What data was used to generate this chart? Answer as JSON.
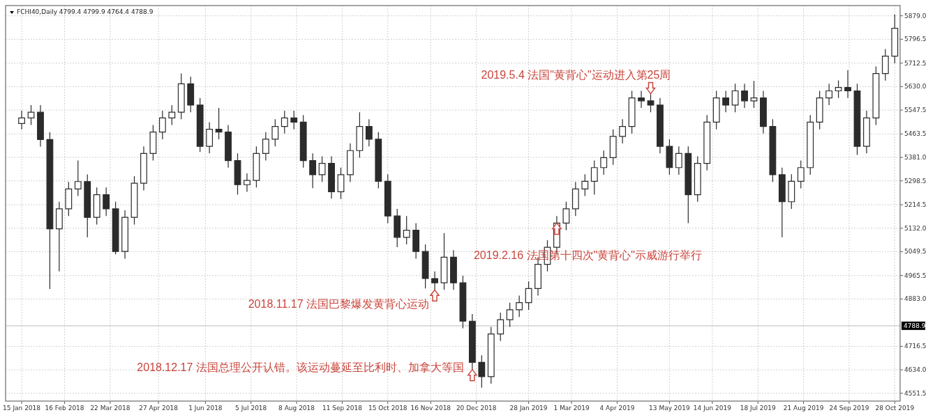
{
  "chart_data": {
    "type": "candlestick",
    "title": "FCHI40,Daily  4799.4 4799.9 4764.4 4788.9",
    "color": "#2b2b2b",
    "grid": true,
    "xlim": [
      "2018-01-03",
      "2019-11-01"
    ],
    "ylim": [
      4524,
      5915
    ],
    "xticks": [
      {
        "value": "2018-01-15",
        "label": "15 Jan 2018"
      },
      {
        "value": "2018-02-16",
        "label": "16 Feb 2018"
      },
      {
        "value": "2018-03-22",
        "label": "22 Mar 2018"
      },
      {
        "value": "2018-04-27",
        "label": "27 Apr 2018"
      },
      {
        "value": "2018-06-01",
        "label": "1 Jun 2018"
      },
      {
        "value": "2018-07-05",
        "label": "5 Jul 2018"
      },
      {
        "value": "2018-08-08",
        "label": "8 Aug 2018"
      },
      {
        "value": "2018-09-11",
        "label": "11 Sep 2018"
      },
      {
        "value": "2018-10-15",
        "label": "15 Oct 2018"
      },
      {
        "value": "2018-11-16",
        "label": "16 Nov 2018"
      },
      {
        "value": "2018-12-20",
        "label": "20 Dec 2018"
      },
      {
        "value": "2019-01-28",
        "label": "28 Jan 2019"
      },
      {
        "value": "2019-03-01",
        "label": "1 Mar 2019"
      },
      {
        "value": "2019-04-04",
        "label": "4 Apr 2019"
      },
      {
        "value": "2019-05-13",
        "label": "13 May 2019"
      },
      {
        "value": "2019-06-14",
        "label": "14 Jun 2019"
      },
      {
        "value": "2019-07-18",
        "label": "18 Jul 2019"
      },
      {
        "value": "2019-08-21",
        "label": "21 Aug 2019"
      },
      {
        "value": "2019-09-24",
        "label": "24 Sep 2019"
      },
      {
        "value": "2019-10-28",
        "label": "28 Oct 2019"
      }
    ],
    "yticks": [
      {
        "value": 4551.5,
        "label": "4551.5"
      },
      {
        "value": 4634,
        "label": "4634.0"
      },
      {
        "value": 4716.5,
        "label": "4716.5"
      },
      {
        "value": 4883,
        "label": "4883.0"
      },
      {
        "value": 4965.5,
        "label": "4965.5"
      },
      {
        "value": 5049.5,
        "label": "5049.5"
      },
      {
        "value": 5132,
        "label": "5132.0"
      },
      {
        "value": 5214.5,
        "label": "5214.5"
      },
      {
        "value": 5298.5,
        "label": "5298.5"
      },
      {
        "value": 5381,
        "label": "5381.0"
      },
      {
        "value": 5463.5,
        "label": "5463.5"
      },
      {
        "value": 5547.5,
        "label": "5547.5"
      },
      {
        "value": 5630,
        "label": "5630.0"
      },
      {
        "value": 5712.5,
        "label": "5712.5"
      },
      {
        "value": 5796.5,
        "label": "5796.5"
      },
      {
        "value": 5879,
        "label": "5879.0"
      }
    ],
    "ref_lines": [
      {
        "axis": "y",
        "value": 4788.9,
        "label": "4788.9",
        "color": "#c8c8c8"
      }
    ],
    "annotations": [
      {
        "text": "2018.11.17 法国巴黎爆发黄背心运动",
        "x": "2018-11-19",
        "y": 4915
      },
      {
        "text": "2018.12.17  法国总理公开认错。该运动蔓延至比利时、加拿大等国",
        "x": "2018-12-17",
        "y": 4635
      },
      {
        "text": "2019.2.16  法国第十四次\"黄背心\"示威游行举行",
        "x": "2019-02-18",
        "y": 5150
      },
      {
        "text": "2019.5.4  法国\"黄背心\"运动进入第25周",
        "x": "2019-04-29",
        "y": 5605
      }
    ],
    "x": [
      "2018-01-15",
      "2018-01-22",
      "2018-01-29",
      "2018-02-05",
      "2018-02-12",
      "2018-02-19",
      "2018-02-26",
      "2018-03-05",
      "2018-03-12",
      "2018-03-19",
      "2018-03-26",
      "2018-04-02",
      "2018-04-09",
      "2018-04-16",
      "2018-04-23",
      "2018-04-30",
      "2018-05-07",
      "2018-05-14",
      "2018-05-21",
      "2018-05-28",
      "2018-06-04",
      "2018-06-11",
      "2018-06-18",
      "2018-06-25",
      "2018-07-02",
      "2018-07-09",
      "2018-07-16",
      "2018-07-23",
      "2018-07-30",
      "2018-08-06",
      "2018-08-13",
      "2018-08-20",
      "2018-08-27",
      "2018-09-03",
      "2018-09-10",
      "2018-09-17",
      "2018-09-24",
      "2018-10-01",
      "2018-10-08",
      "2018-10-15",
      "2018-10-22",
      "2018-10-29",
      "2018-11-05",
      "2018-11-12",
      "2018-11-19",
      "2018-11-26",
      "2018-12-03",
      "2018-12-10",
      "2018-12-17",
      "2018-12-24",
      "2018-12-31",
      "2019-01-07",
      "2019-01-14",
      "2019-01-21",
      "2019-01-28",
      "2019-02-04",
      "2019-02-11",
      "2019-02-18",
      "2019-02-25",
      "2019-03-04",
      "2019-03-11",
      "2019-03-18",
      "2019-03-25",
      "2019-04-01",
      "2019-04-08",
      "2019-04-15",
      "2019-04-22",
      "2019-04-29",
      "2019-05-06",
      "2019-05-13",
      "2019-05-20",
      "2019-05-27",
      "2019-06-03",
      "2019-06-10",
      "2019-06-17",
      "2019-06-24",
      "2019-07-01",
      "2019-07-08",
      "2019-07-15",
      "2019-07-22",
      "2019-07-29",
      "2019-08-05",
      "2019-08-12",
      "2019-08-19",
      "2019-08-26",
      "2019-09-02",
      "2019-09-09",
      "2019-09-16",
      "2019-09-23",
      "2019-09-30",
      "2019-10-07",
      "2019-10-14",
      "2019-10-21",
      "2019-10-28"
    ],
    "ohlc": [
      [
        5500,
        5545,
        5480,
        5520
      ],
      [
        5520,
        5565,
        5495,
        5540
      ],
      [
        5540,
        5565,
        5419,
        5444
      ],
      [
        5444,
        5469,
        4918,
        5130
      ],
      [
        5130,
        5225,
        4980,
        5200
      ],
      [
        5200,
        5295,
        5175,
        5270
      ],
      [
        5270,
        5370,
        5245,
        5296
      ],
      [
        5296,
        5321,
        5100,
        5170
      ],
      [
        5170,
        5275,
        5145,
        5250
      ],
      [
        5250,
        5275,
        5175,
        5200
      ],
      [
        5200,
        5225,
        5040,
        5050
      ],
      [
        5050,
        5195,
        5025,
        5170
      ],
      [
        5170,
        5315,
        5145,
        5290
      ],
      [
        5290,
        5420,
        5265,
        5395
      ],
      [
        5395,
        5495,
        5370,
        5470
      ],
      [
        5470,
        5545,
        5445,
        5520
      ],
      [
        5520,
        5565,
        5495,
        5540
      ],
      [
        5540,
        5676,
        5515,
        5640
      ],
      [
        5640,
        5665,
        5540,
        5565
      ],
      [
        5565,
        5590,
        5400,
        5420
      ],
      [
        5420,
        5505,
        5395,
        5480
      ],
      [
        5480,
        5555,
        5445,
        5470
      ],
      [
        5470,
        5495,
        5345,
        5370
      ],
      [
        5370,
        5395,
        5250,
        5285
      ],
      [
        5285,
        5325,
        5260,
        5300
      ],
      [
        5300,
        5420,
        5275,
        5395
      ],
      [
        5395,
        5470,
        5370,
        5445
      ],
      [
        5445,
        5515,
        5420,
        5490
      ],
      [
        5490,
        5545,
        5465,
        5520
      ],
      [
        5520,
        5545,
        5480,
        5505
      ],
      [
        5505,
        5530,
        5345,
        5370
      ],
      [
        5370,
        5395,
        5273,
        5320
      ],
      [
        5320,
        5385,
        5295,
        5360
      ],
      [
        5360,
        5385,
        5236,
        5260
      ],
      [
        5260,
        5345,
        5235,
        5320
      ],
      [
        5320,
        5430,
        5295,
        5405
      ],
      [
        5405,
        5540,
        5380,
        5490
      ],
      [
        5490,
        5515,
        5420,
        5445
      ],
      [
        5445,
        5470,
        5272,
        5297
      ],
      [
        5297,
        5322,
        5150,
        5175
      ],
      [
        5175,
        5200,
        5065,
        5100
      ],
      [
        5100,
        5175,
        5075,
        5125
      ],
      [
        5125,
        5150,
        5025,
        5050
      ],
      [
        5050,
        5075,
        4920,
        4955
      ],
      [
        4955,
        4980,
        4915,
        4940
      ],
      [
        4940,
        5115,
        4915,
        5030
      ],
      [
        5030,
        5055,
        4915,
        4940
      ],
      [
        4940,
        4965,
        4780,
        4805
      ],
      [
        4805,
        4830,
        4635,
        4660
      ],
      [
        4660,
        4685,
        4571,
        4610
      ],
      [
        4610,
        4785,
        4585,
        4760
      ],
      [
        4760,
        4835,
        4735,
        4810
      ],
      [
        4810,
        4870,
        4785,
        4845
      ],
      [
        4845,
        4895,
        4820,
        4870
      ],
      [
        4870,
        4945,
        4845,
        4920
      ],
      [
        4920,
        5030,
        4895,
        5005
      ],
      [
        5005,
        5090,
        4980,
        5065
      ],
      [
        5065,
        5175,
        5040,
        5150
      ],
      [
        5150,
        5225,
        5125,
        5200
      ],
      [
        5200,
        5295,
        5175,
        5270
      ],
      [
        5270,
        5322,
        5245,
        5297
      ],
      [
        5297,
        5370,
        5250,
        5345
      ],
      [
        5345,
        5405,
        5320,
        5380
      ],
      [
        5380,
        5480,
        5355,
        5455
      ],
      [
        5455,
        5515,
        5430,
        5490
      ],
      [
        5490,
        5615,
        5465,
        5590
      ],
      [
        5590,
        5615,
        5555,
        5580
      ],
      [
        5580,
        5605,
        5540,
        5565
      ],
      [
        5565,
        5590,
        5395,
        5420
      ],
      [
        5420,
        5445,
        5320,
        5345
      ],
      [
        5345,
        5420,
        5320,
        5395
      ],
      [
        5395,
        5420,
        5150,
        5250
      ],
      [
        5250,
        5385,
        5225,
        5360
      ],
      [
        5360,
        5530,
        5335,
        5505
      ],
      [
        5505,
        5615,
        5480,
        5590
      ],
      [
        5590,
        5615,
        5540,
        5565
      ],
      [
        5565,
        5640,
        5540,
        5615
      ],
      [
        5615,
        5640,
        5555,
        5580
      ],
      [
        5580,
        5650,
        5555,
        5590
      ],
      [
        5590,
        5615,
        5465,
        5490
      ],
      [
        5490,
        5515,
        5295,
        5320
      ],
      [
        5320,
        5345,
        5100,
        5225
      ],
      [
        5225,
        5322,
        5200,
        5297
      ],
      [
        5297,
        5370,
        5272,
        5345
      ],
      [
        5345,
        5530,
        5320,
        5505
      ],
      [
        5505,
        5615,
        5480,
        5590
      ],
      [
        5590,
        5640,
        5565,
        5615
      ],
      [
        5615,
        5652,
        5590,
        5627
      ],
      [
        5627,
        5688,
        5590,
        5615
      ],
      [
        5615,
        5640,
        5390,
        5420
      ],
      [
        5420,
        5545,
        5395,
        5520
      ],
      [
        5520,
        5701,
        5495,
        5676
      ],
      [
        5676,
        5762,
        5651,
        5737
      ],
      [
        5737,
        5884,
        5712,
        5835
      ]
    ]
  }
}
